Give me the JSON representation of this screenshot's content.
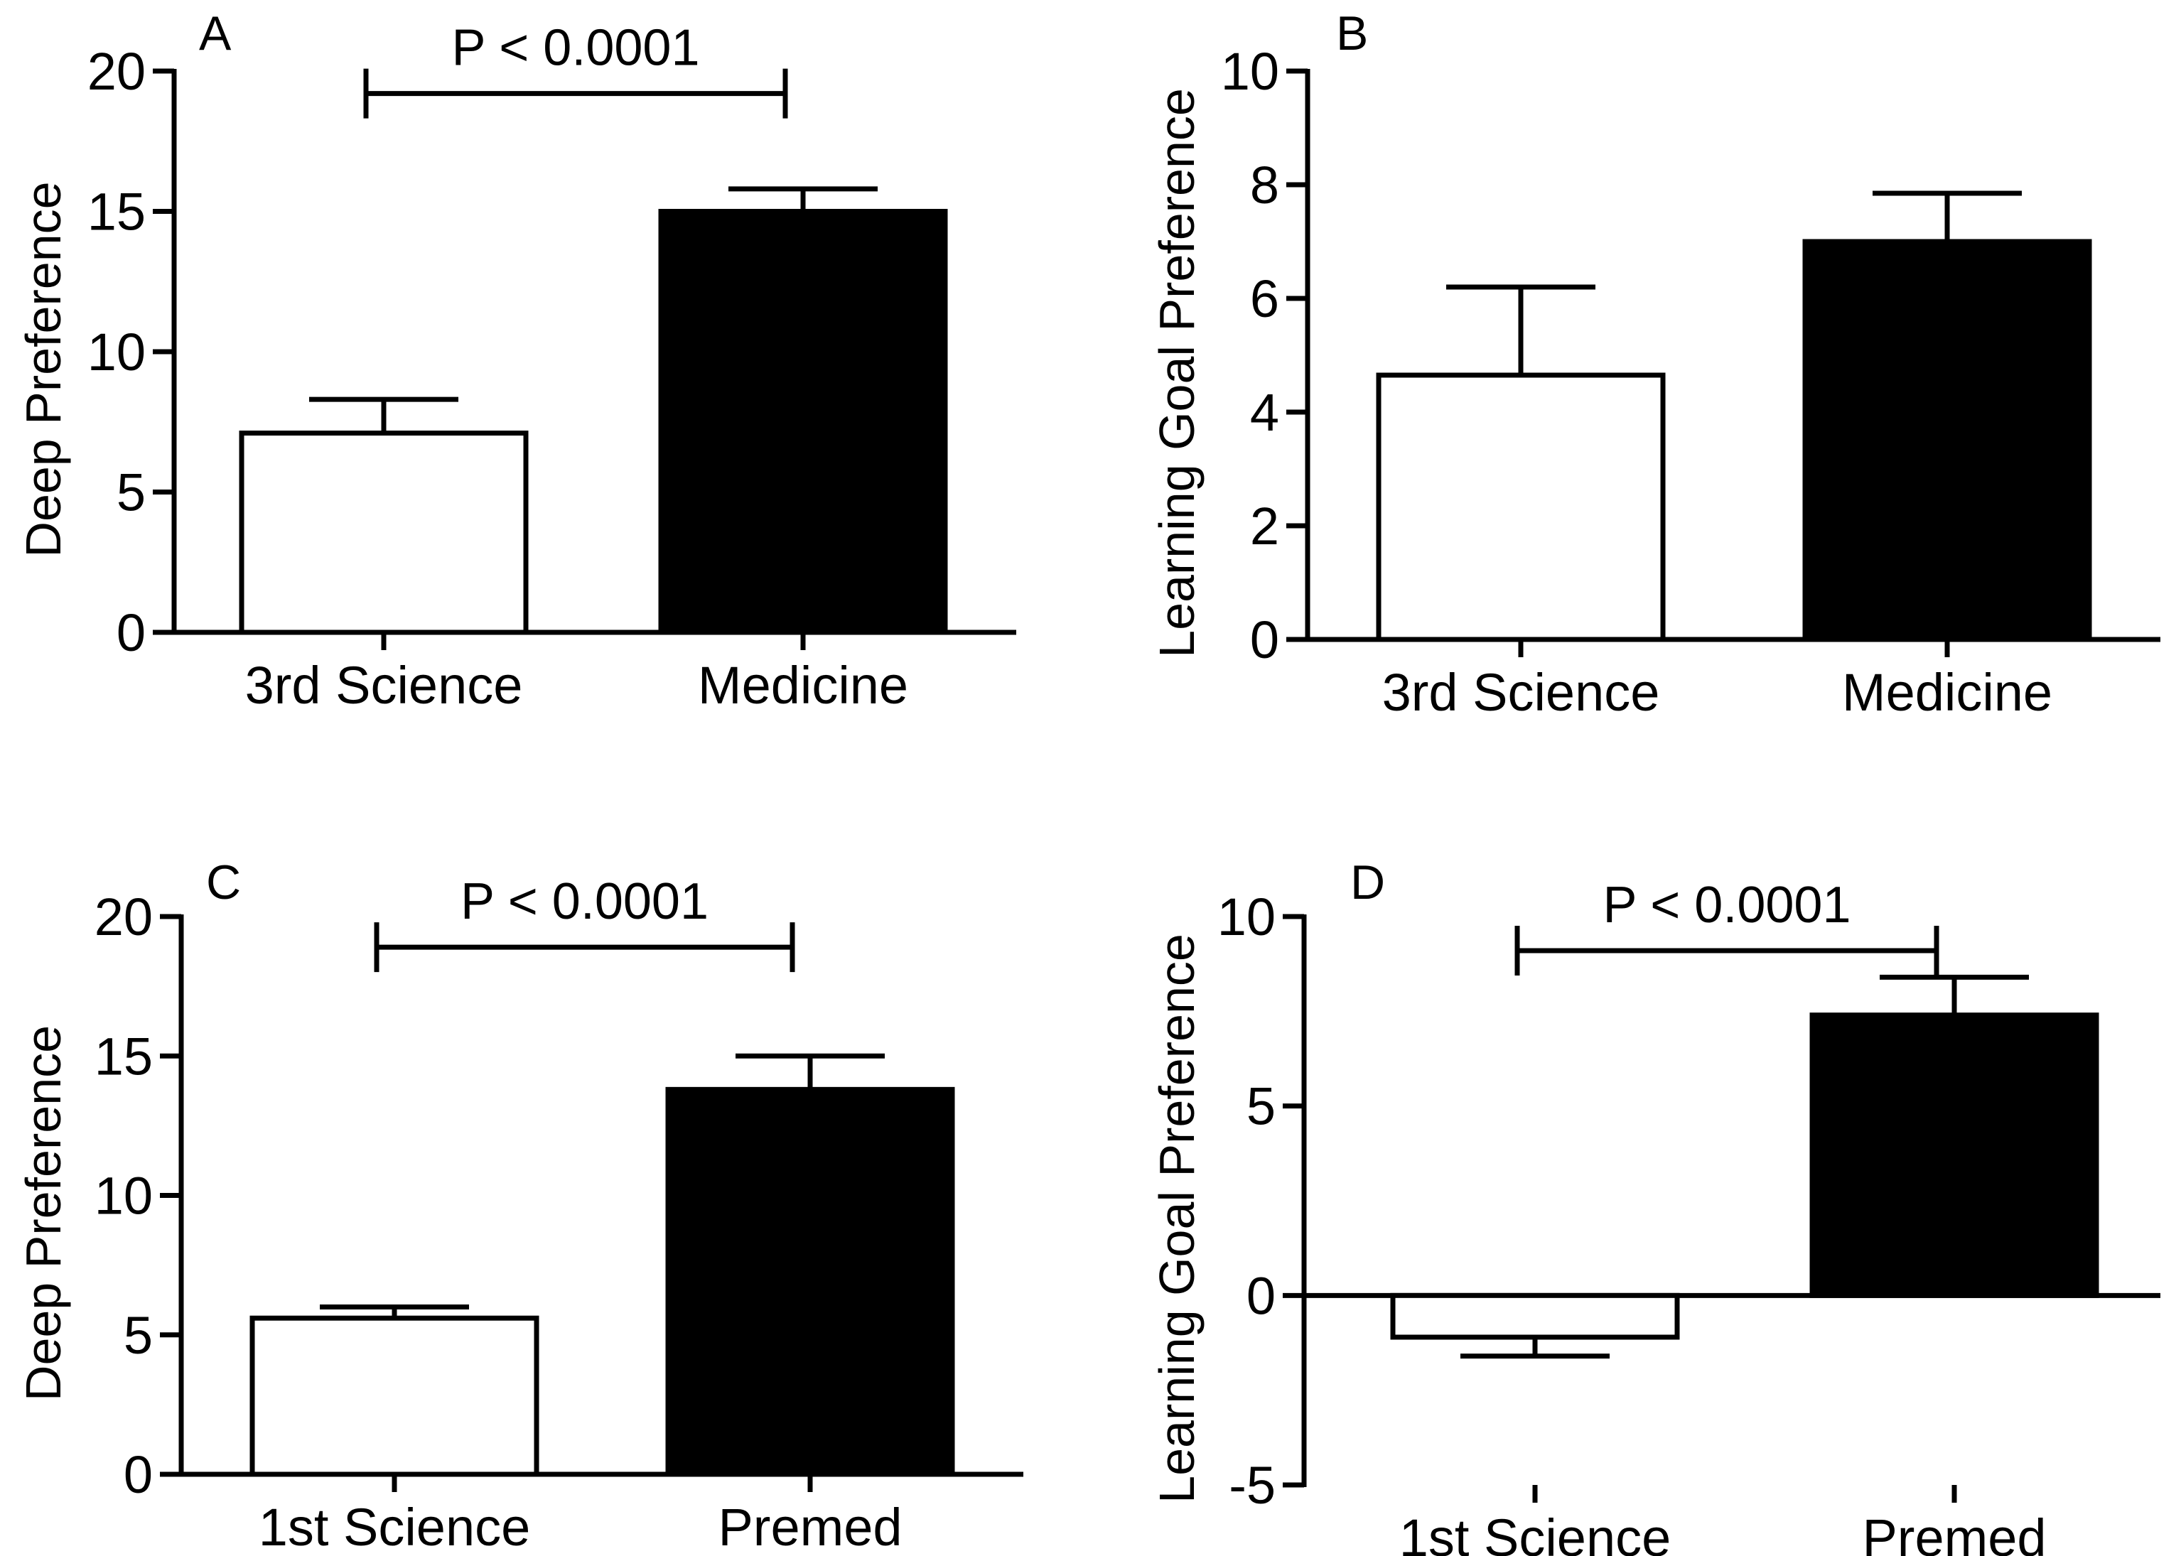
{
  "chart_data": [
    {
      "panel_label": "A",
      "type": "bar",
      "categories": [
        "3rd Science",
        "Medicine"
      ],
      "values": [
        7.1,
        15.0
      ],
      "errors": [
        1.2,
        0.8
      ],
      "bar_fills": [
        "#ffffff",
        "#000000"
      ],
      "ylabel": "Deep Preference",
      "ylim": [
        0,
        20
      ],
      "yticks": [
        0,
        5,
        10,
        15,
        20
      ],
      "significance": {
        "label": "P < 0.0001",
        "from": 0,
        "to": 1,
        "y": 19.2
      }
    },
    {
      "panel_label": "B",
      "type": "bar",
      "categories": [
        "3rd Science",
        "Medicine"
      ],
      "values": [
        4.65,
        7.0
      ],
      "errors": [
        1.55,
        0.85
      ],
      "bar_fills": [
        "#ffffff",
        "#000000"
      ],
      "ylabel": "Learning Goal Preference",
      "ylim": [
        0,
        10
      ],
      "yticks": [
        0,
        2,
        4,
        6,
        8,
        10
      ]
    },
    {
      "panel_label": "C",
      "type": "bar",
      "categories": [
        "1st Science",
        "Premed"
      ],
      "values": [
        5.6,
        13.8
      ],
      "errors": [
        0.4,
        1.2
      ],
      "bar_fills": [
        "#ffffff",
        "#000000"
      ],
      "ylabel": "Deep Preference",
      "ylim": [
        0,
        20
      ],
      "yticks": [
        0,
        5,
        10,
        15,
        20
      ],
      "significance": {
        "label": "P < 0.0001",
        "from": 0,
        "to": 1,
        "y": 18.9
      }
    },
    {
      "panel_label": "D",
      "type": "bar",
      "categories": [
        "1st Science",
        "Premed"
      ],
      "values": [
        -1.1,
        7.4
      ],
      "errors": [
        0.5,
        1.0
      ],
      "bar_fills": [
        "#ffffff",
        "#000000"
      ],
      "ylabel": "Learning Goal Preference",
      "ylim": [
        -5,
        10
      ],
      "yticks": [
        -5,
        0,
        5,
        10
      ],
      "baseline": 0,
      "significance": {
        "label": "P < 0.0001",
        "from": 0,
        "to": 1,
        "y": 9.1
      }
    }
  ]
}
